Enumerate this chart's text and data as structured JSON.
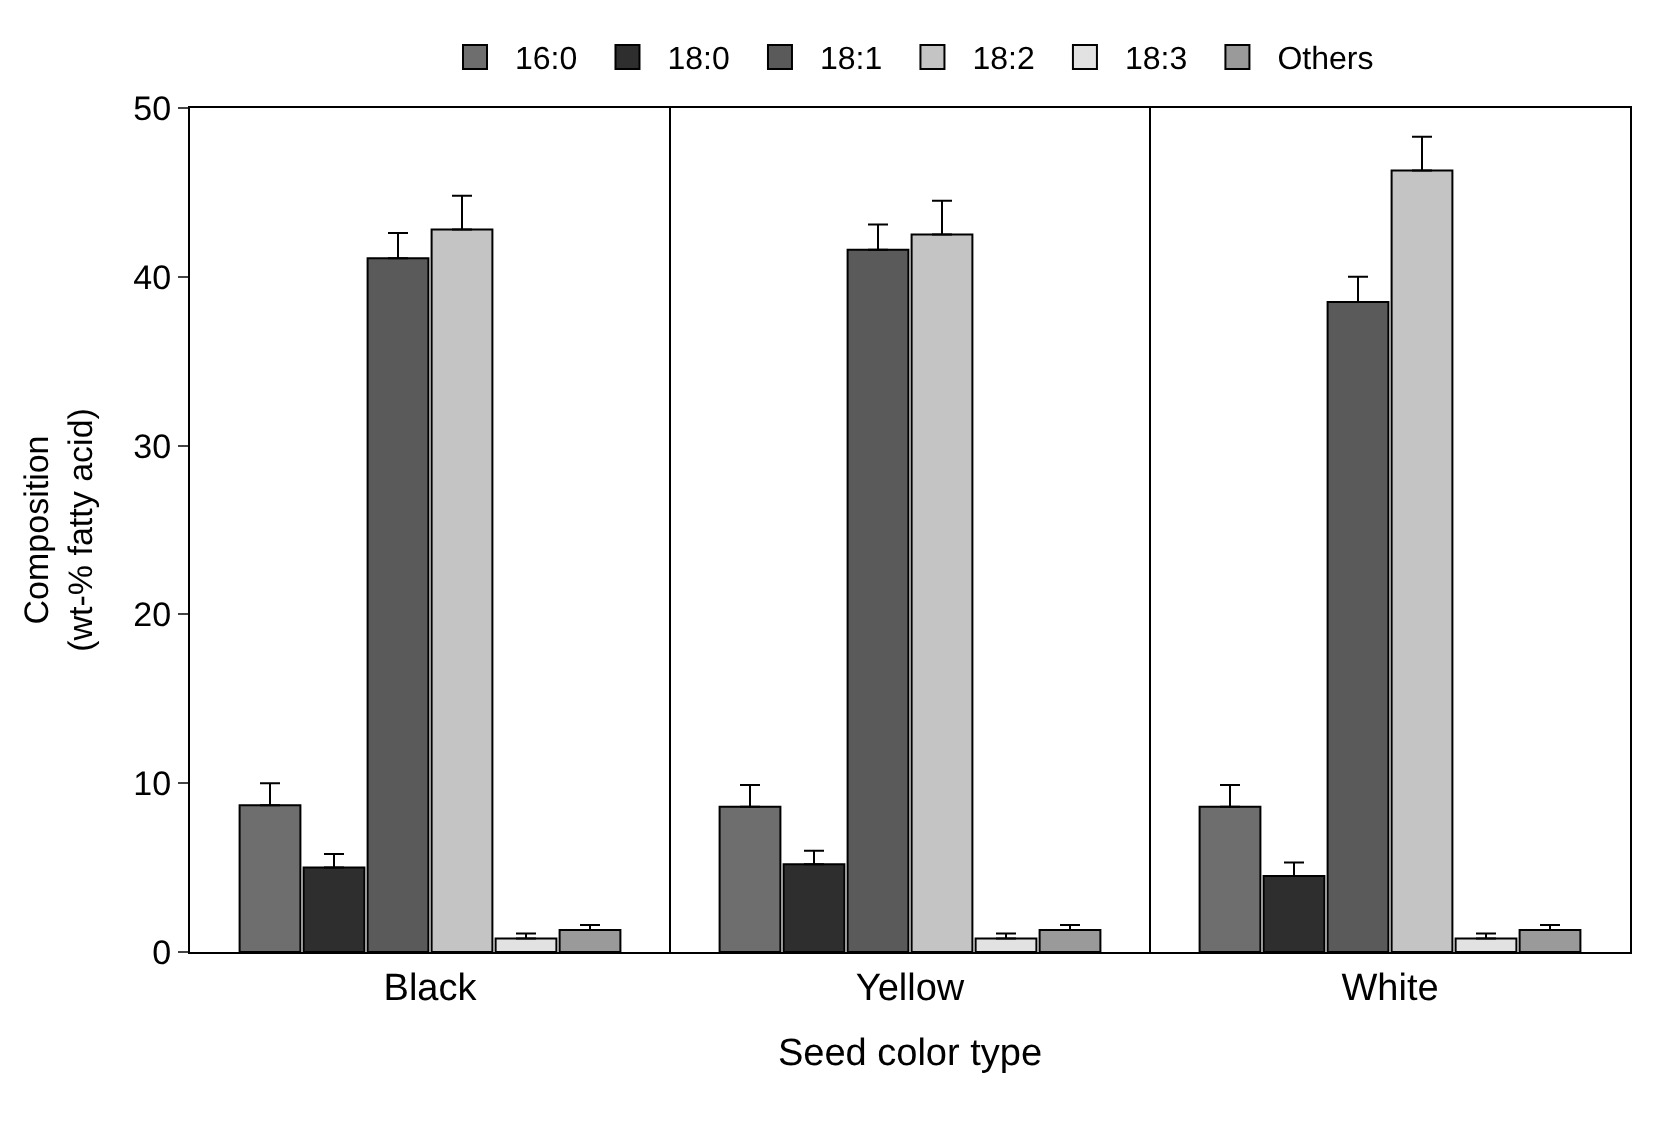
{
  "chart_data": {
    "type": "bar",
    "xlabel": "Seed color type",
    "ylabel": "Composition\n(wt-% fatty acid)",
    "categories": [
      "Black",
      "Yellow",
      "White"
    ],
    "series": [
      {
        "name": "16:0",
        "color": "#6e6e6e",
        "values": [
          8.7,
          8.6,
          8.6
        ],
        "errors": [
          1.3,
          1.3,
          1.3
        ]
      },
      {
        "name": "18:0",
        "color": "#2e2e2e",
        "values": [
          5.0,
          5.2,
          4.5
        ],
        "errors": [
          0.8,
          0.8,
          0.8
        ]
      },
      {
        "name": "18:1",
        "color": "#5a5a5a",
        "values": [
          41.1,
          41.6,
          38.5
        ],
        "errors": [
          1.5,
          1.5,
          1.5
        ]
      },
      {
        "name": "18:2",
        "color": "#c4c4c4",
        "values": [
          42.8,
          42.5,
          46.3
        ],
        "errors": [
          2.0,
          2.0,
          2.0
        ]
      },
      {
        "name": "18:3",
        "color": "#e2e2e2",
        "values": [
          0.8,
          0.8,
          0.8
        ],
        "errors": [
          0.3,
          0.3,
          0.3
        ]
      },
      {
        "name": "Others",
        "color": "#9a9a9a",
        "values": [
          1.3,
          1.3,
          1.3
        ],
        "errors": [
          0.3,
          0.3,
          0.3
        ]
      }
    ],
    "ylim": [
      0,
      50
    ],
    "yticks": [
      0,
      10,
      20,
      30,
      40,
      50
    ],
    "legend": "top"
  }
}
